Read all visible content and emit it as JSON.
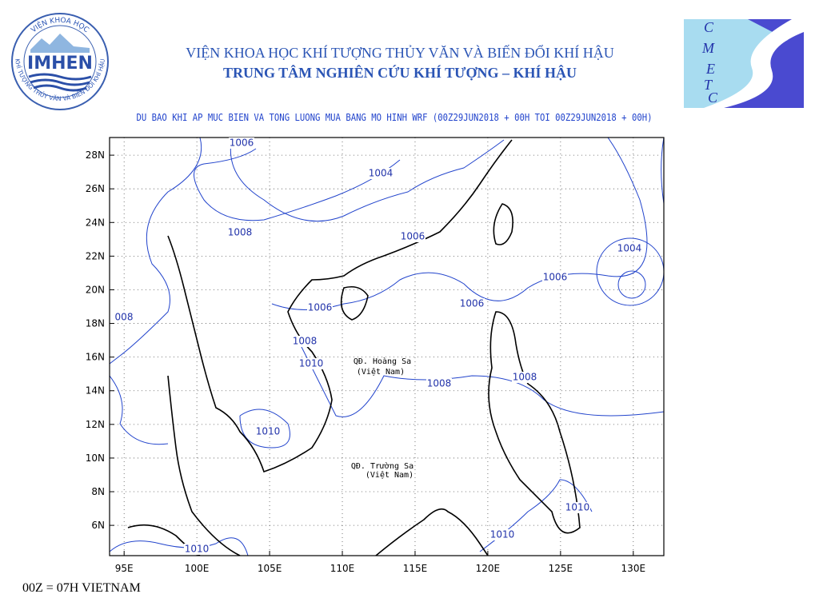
{
  "header": {
    "org_name": "VIỆN KHOA HỌC KHÍ TƯỢNG THỦY VĂN VÀ BIẾN ĐỔI KHÍ HẬU",
    "center_name": "TRUNG TÂM NGHIÊN CỨU KHÍ TƯỢNG – KHÍ HẬU"
  },
  "logos": {
    "imhen": {
      "name": "IMHEN",
      "arc_top": "VIỆN KHOA HỌC",
      "arc_bottom": "KHÍ TƯỢNG THỦY VĂN VÀ BIẾN ĐỔI KHÍ HẬU"
    },
    "cmetc": {
      "letters": [
        "C",
        "M",
        "E",
        "T",
        "C"
      ]
    }
  },
  "map": {
    "title": "DU BAO KHI AP MUC BIEN VA TONG LUONG MUA BANG MO HINH WRF (00Z29JUN2018 + 00H TOI 00Z29JUN2018 + 00H)",
    "xlim": [
      94,
      132.1
    ],
    "ylim": [
      4.2,
      29.05
    ],
    "xticks": [
      {
        "value": 95,
        "label": "95E"
      },
      {
        "value": 100,
        "label": "100E"
      },
      {
        "value": 105,
        "label": "105E"
      },
      {
        "value": 110,
        "label": "110E"
      },
      {
        "value": 115,
        "label": "115E"
      },
      {
        "value": 120,
        "label": "120E"
      },
      {
        "value": 125,
        "label": "125E"
      },
      {
        "value": 130,
        "label": "130E"
      }
    ],
    "yticks": [
      {
        "value": 28,
        "label": "28N"
      },
      {
        "value": 26,
        "label": "26N"
      },
      {
        "value": 24,
        "label": "24N"
      },
      {
        "value": 22,
        "label": "22N"
      },
      {
        "value": 20,
        "label": "20N"
      },
      {
        "value": 18,
        "label": "18N"
      },
      {
        "value": 16,
        "label": "16N"
      },
      {
        "value": 14,
        "label": "14N"
      },
      {
        "value": 12,
        "label": "12N"
      },
      {
        "value": 10,
        "label": "10N"
      },
      {
        "value": 8,
        "label": "8N"
      },
      {
        "value": 6,
        "label": "6N"
      }
    ],
    "contour_labels": [
      "1006",
      "1004",
      "1008",
      "1006",
      "1004",
      "1006",
      "1006",
      "1006",
      "008",
      "1008",
      "1010",
      "1008",
      "1008",
      "1010",
      "1010",
      "1010",
      "1010"
    ],
    "places": [
      "QĐ. Hoàng Sa",
      "(Việt Nam)",
      "QĐ. Trường Sa",
      "(Việt Nam)"
    ]
  },
  "footer": {
    "note": "00Z = 07H VIETNAM"
  }
}
